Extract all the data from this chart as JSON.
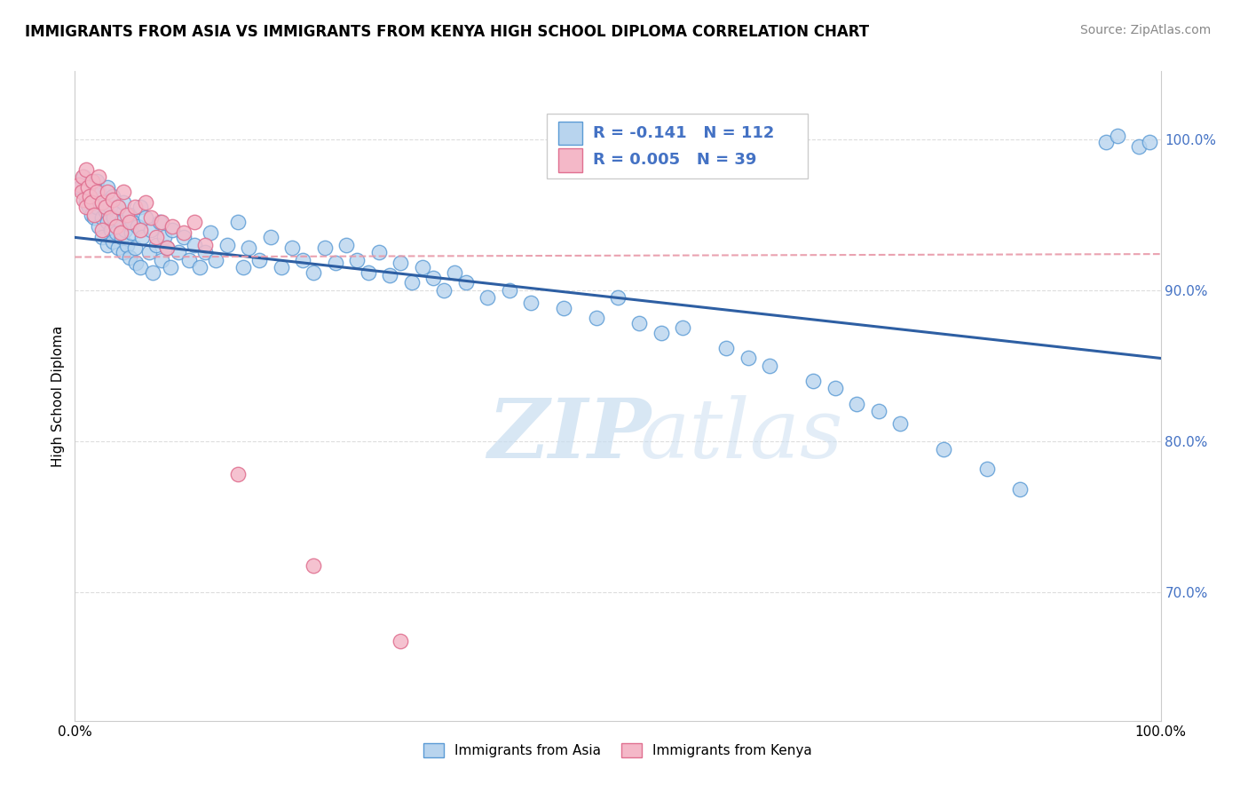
{
  "title": "IMMIGRANTS FROM ASIA VS IMMIGRANTS FROM KENYA HIGH SCHOOL DIPLOMA CORRELATION CHART",
  "source": "Source: ZipAtlas.com",
  "ylabel": "High School Diploma",
  "ytick_labels": [
    "70.0%",
    "80.0%",
    "90.0%",
    "100.0%"
  ],
  "ytick_values": [
    0.7,
    0.8,
    0.9,
    1.0
  ],
  "xlim": [
    0.0,
    1.0
  ],
  "ylim": [
    0.615,
    1.045
  ],
  "watermark_top": "ZIP",
  "watermark_bot": "atlas",
  "legend_asia_r": "R = -0.141",
  "legend_asia_n": "N = 112",
  "legend_kenya_r": "R = 0.005",
  "legend_kenya_n": "N = 39",
  "color_asia_fill": "#b8d4ee",
  "color_asia_edge": "#5b9bd5",
  "color_kenya_fill": "#f4b8c8",
  "color_kenya_edge": "#e07090",
  "color_asia_line": "#2e5fa3",
  "color_kenya_line": "#e898a8",
  "color_tick_right": "#4472c4",
  "background_color": "#ffffff",
  "asia_line_start_y": 0.935,
  "asia_line_end_y": 0.855,
  "kenya_line_y": 0.922,
  "asia_x": [
    0.005,
    0.008,
    0.01,
    0.01,
    0.012,
    0.013,
    0.015,
    0.015,
    0.016,
    0.018,
    0.02,
    0.02,
    0.022,
    0.022,
    0.025,
    0.025,
    0.025,
    0.028,
    0.03,
    0.03,
    0.03,
    0.032,
    0.033,
    0.035,
    0.035,
    0.036,
    0.038,
    0.04,
    0.04,
    0.042,
    0.043,
    0.045,
    0.045,
    0.046,
    0.048,
    0.05,
    0.05,
    0.052,
    0.053,
    0.055,
    0.056,
    0.058,
    0.06,
    0.06,
    0.062,
    0.065,
    0.068,
    0.07,
    0.072,
    0.075,
    0.078,
    0.08,
    0.082,
    0.085,
    0.088,
    0.09,
    0.095,
    0.1,
    0.105,
    0.11,
    0.115,
    0.12,
    0.125,
    0.13,
    0.14,
    0.15,
    0.155,
    0.16,
    0.17,
    0.18,
    0.19,
    0.2,
    0.21,
    0.22,
    0.23,
    0.24,
    0.25,
    0.26,
    0.27,
    0.28,
    0.29,
    0.3,
    0.31,
    0.32,
    0.33,
    0.34,
    0.35,
    0.36,
    0.38,
    0.4,
    0.42,
    0.45,
    0.48,
    0.5,
    0.52,
    0.54,
    0.56,
    0.6,
    0.62,
    0.64,
    0.68,
    0.7,
    0.72,
    0.74,
    0.76,
    0.8,
    0.84,
    0.87,
    0.95,
    0.96,
    0.98,
    0.99
  ],
  "asia_y": [
    0.968,
    0.975,
    0.962,
    0.958,
    0.97,
    0.955,
    0.965,
    0.95,
    0.96,
    0.948,
    0.972,
    0.955,
    0.965,
    0.942,
    0.958,
    0.948,
    0.935,
    0.952,
    0.968,
    0.945,
    0.93,
    0.955,
    0.94,
    0.962,
    0.932,
    0.948,
    0.938,
    0.955,
    0.928,
    0.945,
    0.935,
    0.958,
    0.925,
    0.94,
    0.93,
    0.95,
    0.922,
    0.938,
    0.945,
    0.928,
    0.918,
    0.942,
    0.955,
    0.915,
    0.935,
    0.948,
    0.925,
    0.94,
    0.912,
    0.93,
    0.945,
    0.92,
    0.935,
    0.928,
    0.915,
    0.94,
    0.925,
    0.935,
    0.92,
    0.93,
    0.915,
    0.925,
    0.938,
    0.92,
    0.93,
    0.945,
    0.915,
    0.928,
    0.92,
    0.935,
    0.915,
    0.928,
    0.92,
    0.912,
    0.928,
    0.918,
    0.93,
    0.92,
    0.912,
    0.925,
    0.91,
    0.918,
    0.905,
    0.915,
    0.908,
    0.9,
    0.912,
    0.905,
    0.895,
    0.9,
    0.892,
    0.888,
    0.882,
    0.895,
    0.878,
    0.872,
    0.875,
    0.862,
    0.855,
    0.85,
    0.84,
    0.835,
    0.825,
    0.82,
    0.812,
    0.795,
    0.782,
    0.768,
    0.998,
    1.002,
    0.995,
    0.998
  ],
  "kenya_x": [
    0.004,
    0.006,
    0.007,
    0.008,
    0.01,
    0.01,
    0.012,
    0.014,
    0.015,
    0.016,
    0.018,
    0.02,
    0.022,
    0.025,
    0.025,
    0.028,
    0.03,
    0.032,
    0.035,
    0.038,
    0.04,
    0.042,
    0.045,
    0.048,
    0.05,
    0.055,
    0.06,
    0.065,
    0.07,
    0.075,
    0.08,
    0.085,
    0.09,
    0.1,
    0.11,
    0.12,
    0.15,
    0.22,
    0.3
  ],
  "kenya_y": [
    0.97,
    0.965,
    0.975,
    0.96,
    0.98,
    0.955,
    0.968,
    0.962,
    0.958,
    0.972,
    0.95,
    0.965,
    0.975,
    0.958,
    0.94,
    0.955,
    0.965,
    0.948,
    0.96,
    0.942,
    0.955,
    0.938,
    0.965,
    0.95,
    0.945,
    0.955,
    0.94,
    0.958,
    0.948,
    0.935,
    0.945,
    0.928,
    0.942,
    0.938,
    0.945,
    0.93,
    0.778,
    0.718,
    0.668
  ]
}
